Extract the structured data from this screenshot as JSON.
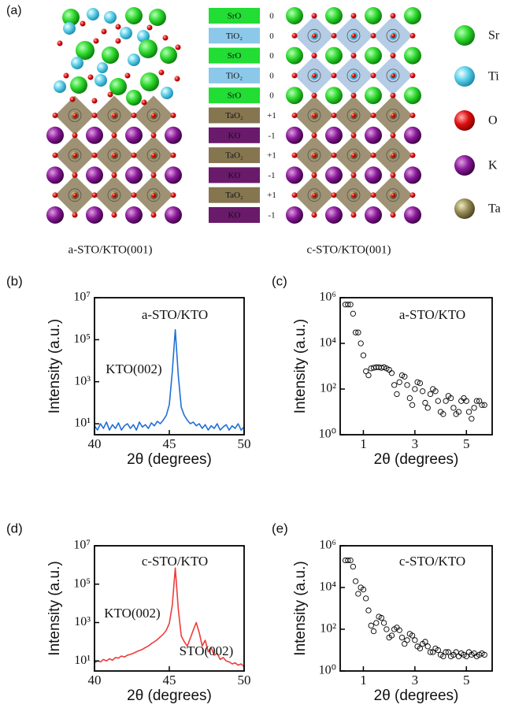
{
  "panel_a": {
    "label": "(a)",
    "layers": [
      {
        "label": "SrO",
        "charge": "0",
        "color": "#22dd33"
      },
      {
        "label": "TiO₂",
        "charge": "0",
        "color": "#8cc8ea"
      },
      {
        "label": "SrO",
        "charge": "0",
        "color": "#22dd33"
      },
      {
        "label": "TiO₂",
        "charge": "0",
        "color": "#8cc8ea"
      },
      {
        "label": "SrO",
        "charge": "0",
        "color": "#22dd33"
      },
      {
        "label": "TaO₂",
        "charge": "+1",
        "color": "#857650"
      },
      {
        "label": "KO",
        "charge": "-1",
        "color": "#6a1a6a"
      },
      {
        "label": "TaO₂",
        "charge": "+1",
        "color": "#857650"
      },
      {
        "label": "KO",
        "charge": "-1",
        "color": "#6a1a6a"
      },
      {
        "label": "TaO₂",
        "charge": "+1",
        "color": "#857650"
      },
      {
        "label": "KO",
        "charge": "-1",
        "color": "#6a1a6a"
      }
    ],
    "captions": [
      "a-STO/KTO(001)",
      "c-STO/KTO(001)"
    ],
    "legend": [
      "Sr",
      "Ti",
      "O",
      "K",
      "Ta"
    ]
  },
  "chart_data": [
    {
      "type": "line",
      "panel": "(b)",
      "color": "#1f6fd6",
      "log_y": true,
      "annotations": [
        "a-STO/KTO",
        "KTO(002)"
      ],
      "xlabel": "2θ (degrees)",
      "ylabel": "Intensity (a.u.)",
      "xlim": [
        40,
        50
      ],
      "xticks": [
        40,
        45,
        50
      ],
      "ylim": [
        3,
        10000000
      ],
      "yticks": [
        {
          "value": 10,
          "label": "10¹"
        },
        {
          "value": 1000,
          "label": "10³"
        },
        {
          "value": 100000,
          "label": "10⁵"
        },
        {
          "value": 10000000,
          "label": "10⁷"
        }
      ],
      "x": [
        40,
        40.2,
        40.4,
        40.6,
        40.8,
        41,
        41.2,
        41.4,
        41.6,
        41.8,
        42,
        42.2,
        42.4,
        42.6,
        42.8,
        43,
        43.2,
        43.4,
        43.6,
        43.8,
        44,
        44.2,
        44.4,
        44.6,
        44.8,
        45,
        45.2,
        45.4,
        45.6,
        45.8,
        46,
        46.2,
        46.4,
        46.6,
        46.8,
        47,
        47.2,
        47.4,
        47.6,
        47.8,
        48,
        48.2,
        48.4,
        48.6,
        48.8,
        49,
        49.2,
        49.4,
        49.6,
        49.8,
        50
      ],
      "values": [
        8,
        5,
        10,
        6,
        12,
        5,
        9,
        6,
        11,
        5,
        8,
        10,
        6,
        9,
        5,
        12,
        7,
        9,
        6,
        11,
        8,
        13,
        10,
        15,
        25,
        80,
        3000,
        300000,
        2000,
        60,
        25,
        15,
        10,
        12,
        8,
        10,
        6,
        9,
        5,
        8,
        6,
        10,
        5,
        7,
        9,
        5,
        8,
        6,
        10,
        5,
        7
      ]
    },
    {
      "type": "scatter",
      "panel": "(c)",
      "color": "#000000",
      "log_y": true,
      "annotations": [
        "a-STO/KTO"
      ],
      "xlabel": "2θ (degrees)",
      "ylabel": "Intensity (a.u.)",
      "xlim": [
        0.1,
        6
      ],
      "xticks": [
        1,
        3,
        5
      ],
      "ylim": [
        1,
        1000000
      ],
      "yticks": [
        {
          "value": 1,
          "label": "10⁰"
        },
        {
          "value": 100,
          "label": "10²"
        },
        {
          "value": 10000,
          "label": "10⁴"
        },
        {
          "value": 1000000,
          "label": "10⁶"
        }
      ],
      "x": [
        0.3,
        0.4,
        0.5,
        0.6,
        0.7,
        0.8,
        0.9,
        1.0,
        1.1,
        1.2,
        1.3,
        1.4,
        1.5,
        1.6,
        1.7,
        1.8,
        1.9,
        2.0,
        2.1,
        2.2,
        2.3,
        2.4,
        2.5,
        2.6,
        2.7,
        2.8,
        2.9,
        3.0,
        3.1,
        3.2,
        3.3,
        3.4,
        3.5,
        3.6,
        3.7,
        3.8,
        3.9,
        4.0,
        4.1,
        4.2,
        4.3,
        4.4,
        4.5,
        4.6,
        4.7,
        4.8,
        4.9,
        5.0,
        5.1,
        5.2,
        5.3,
        5.4,
        5.5,
        5.6,
        5.7
      ],
      "values": [
        500000,
        500000,
        500000,
        200000,
        30000,
        30000,
        10000,
        3000,
        600,
        400,
        800,
        850,
        900,
        900,
        850,
        900,
        800,
        700,
        500,
        150,
        60,
        200,
        400,
        350,
        150,
        40,
        20,
        100,
        200,
        180,
        80,
        25,
        15,
        60,
        100,
        80,
        30,
        10,
        8,
        30,
        50,
        40,
        15,
        8,
        10,
        30,
        40,
        30,
        10,
        5,
        15,
        30,
        30,
        20,
        20
      ]
    },
    {
      "type": "line",
      "panel": "(d)",
      "color": "#ee3b3b",
      "log_y": true,
      "annotations": [
        "c-STO/KTO",
        "KTO(002)",
        "STO(002)"
      ],
      "xlabel": "2θ (degrees)",
      "ylabel": "Intensity (a.u.)",
      "xlim": [
        40,
        50
      ],
      "xticks": [
        40,
        45,
        50
      ],
      "ylim": [
        3,
        10000000
      ],
      "yticks": [
        {
          "value": 10,
          "label": "10¹"
        },
        {
          "value": 1000,
          "label": "10³"
        },
        {
          "value": 100000,
          "label": "10⁵"
        },
        {
          "value": 10000000,
          "label": "10⁷"
        }
      ],
      "x": [
        40,
        40.2,
        40.4,
        40.6,
        40.8,
        41,
        41.2,
        41.4,
        41.6,
        41.8,
        42,
        42.2,
        42.4,
        42.6,
        42.8,
        43,
        43.2,
        43.4,
        43.6,
        43.8,
        44,
        44.2,
        44.4,
        44.6,
        44.8,
        45,
        45.2,
        45.4,
        45.6,
        45.8,
        46,
        46.2,
        46.4,
        46.6,
        46.8,
        47,
        47.2,
        47.4,
        47.6,
        47.8,
        48,
        48.2,
        48.4,
        48.6,
        48.8,
        49,
        49.2,
        49.4,
        49.6,
        49.8,
        50
      ],
      "values": [
        8,
        10,
        9,
        12,
        10,
        13,
        11,
        15,
        14,
        18,
        16,
        20,
        22,
        25,
        30,
        35,
        40,
        50,
        60,
        80,
        100,
        130,
        180,
        250,
        400,
        900,
        8000,
        700000,
        5000,
        200,
        100,
        60,
        150,
        400,
        1000,
        300,
        60,
        120,
        30,
        50,
        20,
        25,
        12,
        15,
        10,
        9,
        7,
        8,
        6,
        7,
        5
      ]
    },
    {
      "type": "scatter",
      "panel": "(e)",
      "color": "#000000",
      "log_y": true,
      "annotations": [
        "c-STO/KTO"
      ],
      "xlabel": "2θ (degrees)",
      "ylabel": "Intensity (a.u.)",
      "xlim": [
        0.1,
        6
      ],
      "xticks": [
        1,
        3,
        5
      ],
      "ylim": [
        1,
        1000000
      ],
      "yticks": [
        {
          "value": 1,
          "label": "10⁰"
        },
        {
          "value": 100,
          "label": "10²"
        },
        {
          "value": 10000,
          "label": "10⁴"
        },
        {
          "value": 1000000,
          "label": "10⁶"
        }
      ],
      "x": [
        0.3,
        0.4,
        0.5,
        0.6,
        0.7,
        0.8,
        0.9,
        1.0,
        1.1,
        1.2,
        1.3,
        1.4,
        1.5,
        1.6,
        1.7,
        1.8,
        1.9,
        2.0,
        2.1,
        2.2,
        2.3,
        2.4,
        2.5,
        2.6,
        2.7,
        2.8,
        2.9,
        3.0,
        3.1,
        3.2,
        3.3,
        3.4,
        3.5,
        3.6,
        3.7,
        3.8,
        3.9,
        4.0,
        4.1,
        4.2,
        4.3,
        4.4,
        4.5,
        4.6,
        4.7,
        4.8,
        4.9,
        5.0,
        5.1,
        5.2,
        5.3,
        5.4,
        5.5,
        5.6,
        5.7
      ],
      "values": [
        200000,
        200000,
        200000,
        100000,
        20000,
        5000,
        10000,
        8000,
        3000,
        800,
        150,
        80,
        200,
        400,
        350,
        200,
        100,
        40,
        50,
        100,
        120,
        90,
        40,
        20,
        30,
        60,
        50,
        30,
        15,
        12,
        20,
        25,
        15,
        8,
        8,
        12,
        10,
        6,
        5,
        8,
        8,
        5,
        6,
        8,
        5,
        7,
        6,
        5,
        8,
        6,
        7,
        5,
        6,
        7,
        6
      ]
    }
  ]
}
